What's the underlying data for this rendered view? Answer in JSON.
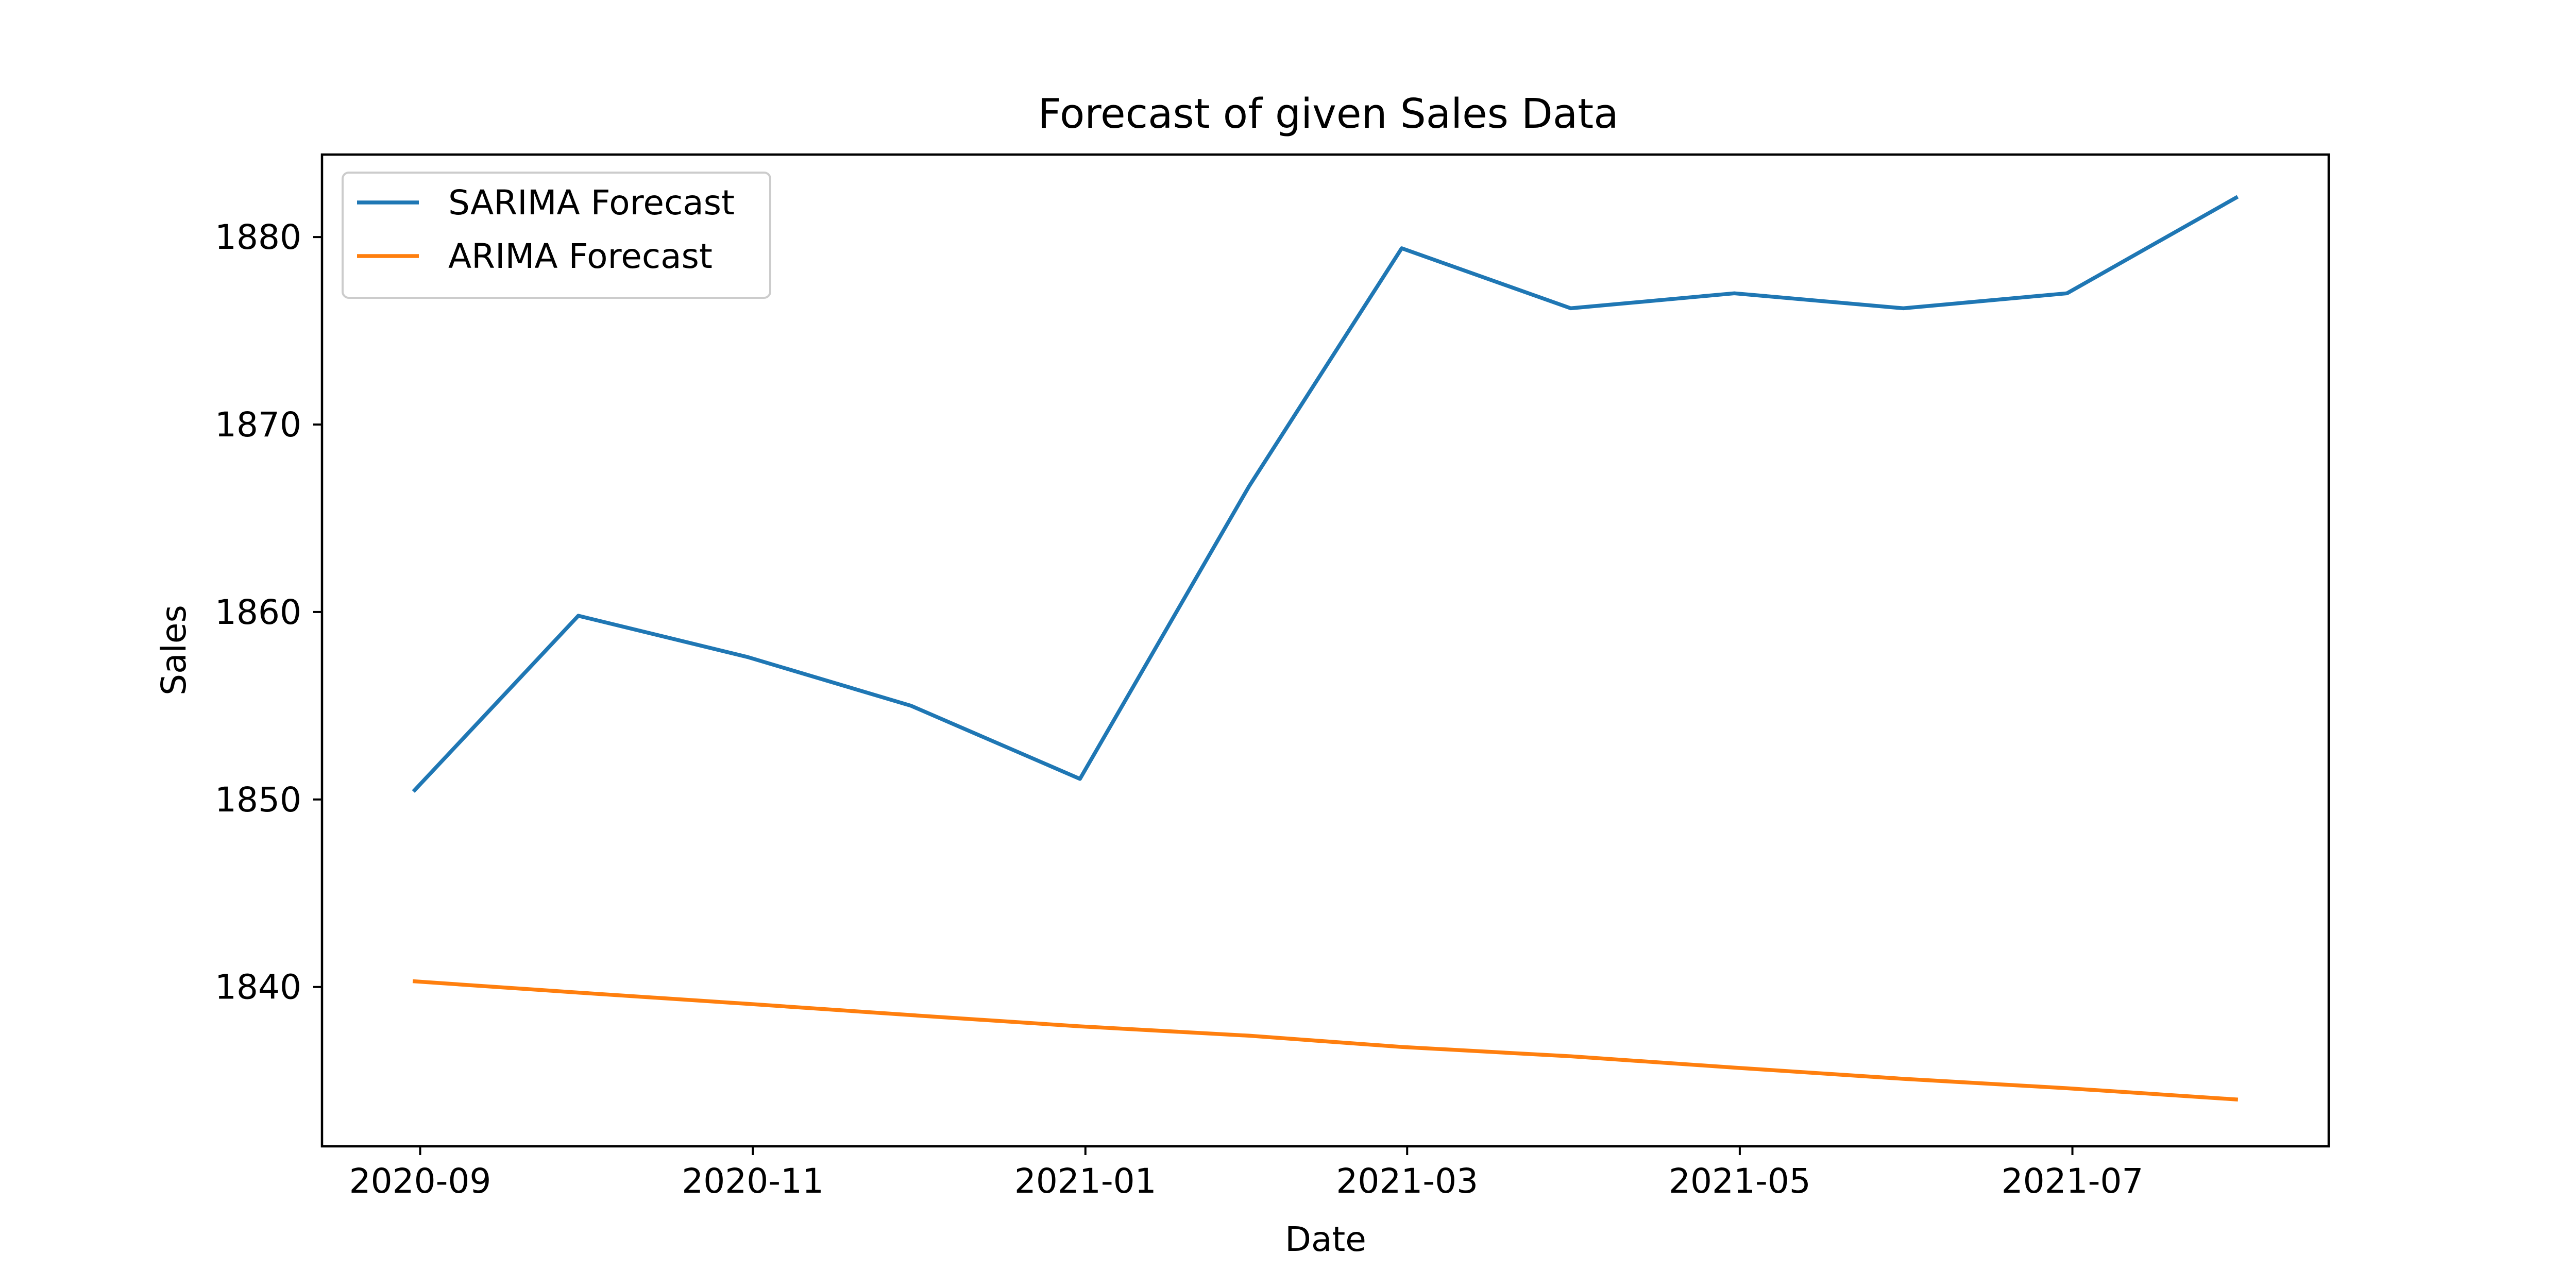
{
  "chart_data": {
    "type": "line",
    "title": "Forecast of given Sales Data",
    "xlabel": "Date",
    "ylabel": "Sales",
    "x": [
      "2020-08-31",
      "2020-09-30",
      "2020-10-31",
      "2020-11-30",
      "2020-12-31",
      "2021-01-31",
      "2021-02-28",
      "2021-03-31",
      "2021-04-30",
      "2021-05-31",
      "2021-06-30",
      "2021-07-31"
    ],
    "series": [
      {
        "name": "SARIMA Forecast",
        "color": "#1f77b4",
        "values": [
          1850.5,
          1859.8,
          1857.6,
          1855.0,
          1851.1,
          1866.7,
          1879.4,
          1876.2,
          1877.0,
          1876.2,
          1877.0,
          1882.1
        ]
      },
      {
        "name": "ARIMA Forecast",
        "color": "#ff7f0e",
        "values": [
          1840.3,
          1839.7,
          1839.1,
          1838.5,
          1837.9,
          1837.4,
          1836.8,
          1836.3,
          1835.7,
          1835.1,
          1834.6,
          1834.0
        ]
      }
    ],
    "x_ticks": [
      "2020-09",
      "2020-11",
      "2021-01",
      "2021-03",
      "2021-05",
      "2021-07"
    ],
    "y_ticks": [
      1840,
      1850,
      1860,
      1870,
      1880
    ],
    "xlim": [
      "2020-08-14",
      "2021-08-17"
    ],
    "ylim": [
      1831.5,
      1884.4
    ],
    "grid": false,
    "legend_position": "top-left"
  }
}
